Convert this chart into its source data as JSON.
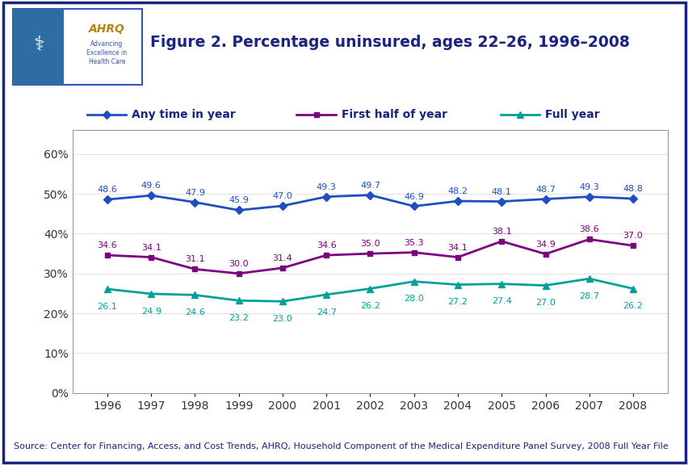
{
  "title": "Figure 2. Percentage uninsured, ages 22–26, 1996–2008",
  "years": [
    1996,
    1997,
    1998,
    1999,
    2000,
    2001,
    2002,
    2003,
    2004,
    2005,
    2006,
    2007,
    2008
  ],
  "any_time": [
    48.6,
    49.6,
    47.9,
    45.9,
    47.0,
    49.3,
    49.7,
    46.9,
    48.2,
    48.1,
    48.7,
    49.3,
    48.8
  ],
  "first_half": [
    34.6,
    34.1,
    31.1,
    30.0,
    31.4,
    34.6,
    35.0,
    35.3,
    34.1,
    38.1,
    34.9,
    38.6,
    37.0
  ],
  "full_year": [
    26.1,
    24.9,
    24.6,
    23.2,
    23.0,
    24.7,
    26.2,
    28.0,
    27.2,
    27.4,
    27.0,
    28.7,
    26.2
  ],
  "color_any_time": "#1F4FBF",
  "color_first_half": "#7B0080",
  "color_full_year": "#00A09A",
  "label_any_time": "Any time in year",
  "label_first_half": "First half of year",
  "label_full_year": "Full year",
  "ytick_vals": [
    0,
    10,
    20,
    30,
    40,
    50,
    60
  ],
  "ylim": [
    0,
    66
  ],
  "source_text": "Source: Center for Financing, Access, and Cost Trends, AHRQ, Household Component of the Medical Expenditure Panel Survey, 2008 Full Year File",
  "title_color": "#1A237E",
  "outer_border_color": "#1A237E",
  "background_color": "#FFFFFF",
  "header_bar_color": "#1A237E",
  "title_fontsize": 13.5,
  "label_fontsize": 10,
  "tick_fontsize": 10,
  "source_fontsize": 8,
  "annotation_fontsize": 8,
  "legend_text_color": "#1A237E"
}
